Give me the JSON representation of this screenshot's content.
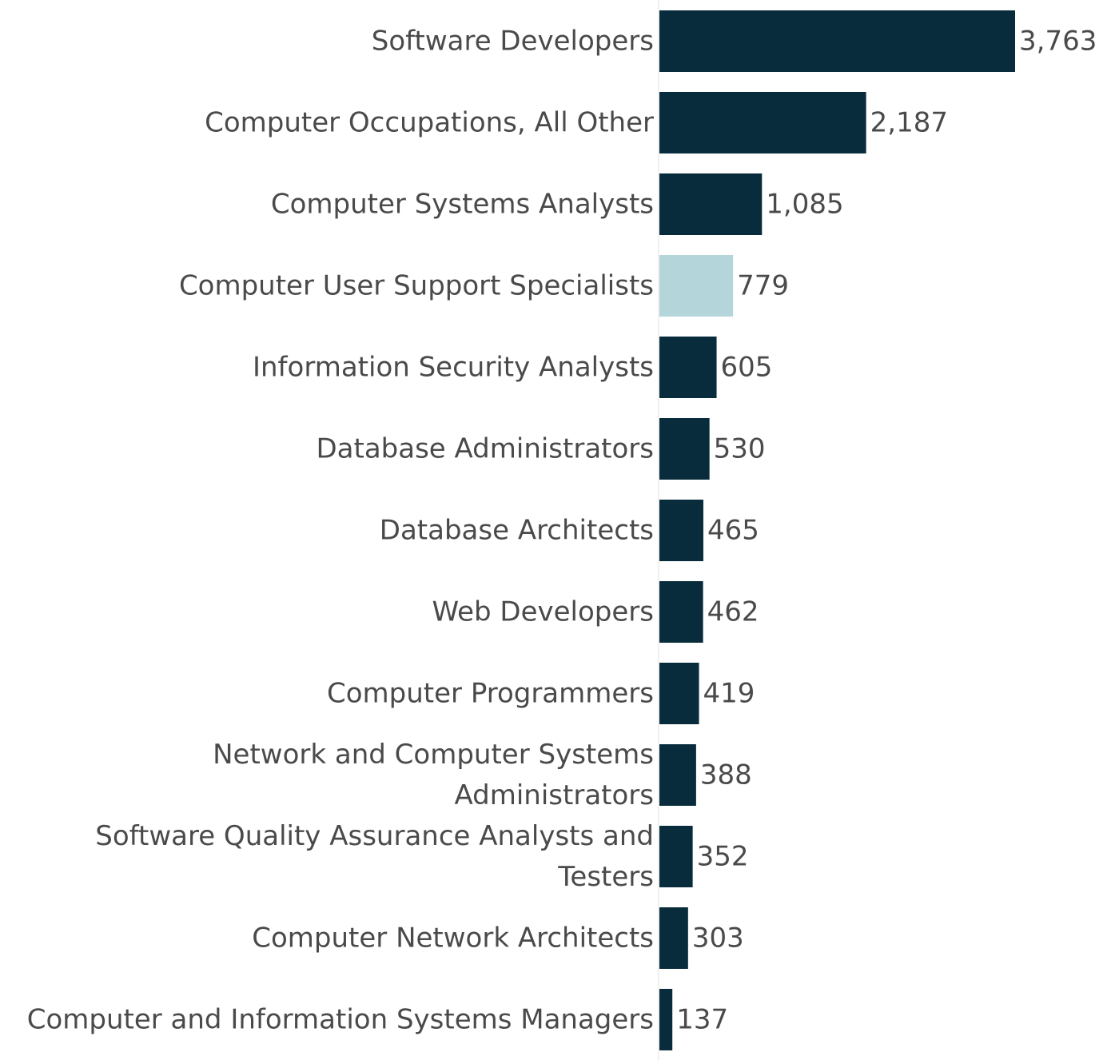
{
  "chart_data": {
    "type": "bar",
    "orientation": "horizontal",
    "title": "",
    "xlabel": "",
    "ylabel": "",
    "xlim": [
      0,
      3763
    ],
    "grid": false,
    "legend": "none",
    "categories": [
      [
        "Software Developers"
      ],
      [
        "Computer Occupations, All Other"
      ],
      [
        "Computer Systems Analysts"
      ],
      [
        "Computer User Support Specialists"
      ],
      [
        "Information Security Analysts"
      ],
      [
        "Database Administrators"
      ],
      [
        "Database Architects"
      ],
      [
        "Web Developers"
      ],
      [
        "Computer Programmers"
      ],
      [
        "Network and Computer Systems",
        "Administrators"
      ],
      [
        "Software Quality Assurance Analysts and",
        "Testers"
      ],
      [
        "Computer Network Architects"
      ],
      [
        "Computer and Information Systems Managers"
      ]
    ],
    "values": [
      3763,
      2187,
      1085,
      779,
      605,
      530,
      465,
      462,
      419,
      388,
      352,
      303,
      137
    ],
    "value_labels": [
      "3,763",
      "2,187",
      "1,085",
      "779",
      "605",
      "530",
      "465",
      "462",
      "419",
      "388",
      "352",
      "303",
      "137"
    ],
    "highlight_index": 3,
    "colors": {
      "bar": "#082c3b",
      "highlight": "#b4d6da",
      "text": "#4a4a4a",
      "axis": "#f0f0f0"
    }
  }
}
